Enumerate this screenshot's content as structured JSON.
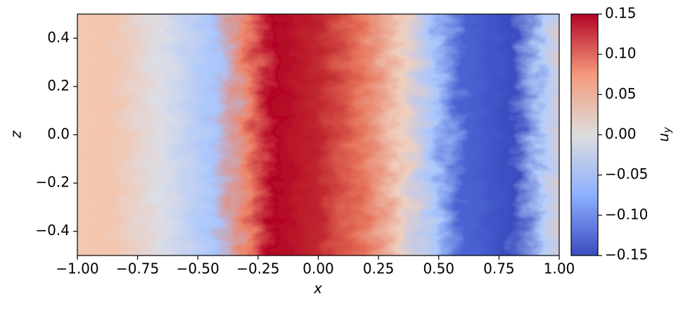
{
  "chart_data": {
    "type": "heatmap",
    "xlabel": "x",
    "ylabel": "z",
    "colorbar_label": "u",
    "colorbar_label_subscript": "y",
    "xlim": [
      -1,
      1
    ],
    "xticks": [
      {
        "value": -1,
        "label": "−1.00"
      },
      {
        "value": -0.75,
        "label": "−0.75"
      },
      {
        "value": -0.5,
        "label": "−0.50"
      },
      {
        "value": -0.25,
        "label": "−0.25"
      },
      {
        "value": 0,
        "label": "0.00"
      },
      {
        "value": 0.25,
        "label": "0.25"
      },
      {
        "value": 0.5,
        "label": "0.50"
      },
      {
        "value": 0.75,
        "label": "0.75"
      },
      {
        "value": 1,
        "label": "1.00"
      }
    ],
    "ylim": [
      -0.5,
      0.5
    ],
    "yticks": [
      {
        "value": -0.4,
        "label": "−0.4"
      },
      {
        "value": -0.2,
        "label": "−0.2"
      },
      {
        "value": 0,
        "label": "0.0"
      },
      0.2,
      0.4
    ],
    "clim": [
      -0.15,
      0.15
    ],
    "cticks": [
      {
        "value": -0.15,
        "label": "−0.15"
      },
      {
        "value": -0.1,
        "label": "−0.10"
      },
      {
        "value": -0.05,
        "label": "−0.05"
      },
      {
        "value": 0,
        "label": "0.00"
      },
      0.05,
      {
        "value": 0.1,
        "label": "0.10"
      },
      0.15
    ],
    "colormap": "coolwarm"
  }
}
